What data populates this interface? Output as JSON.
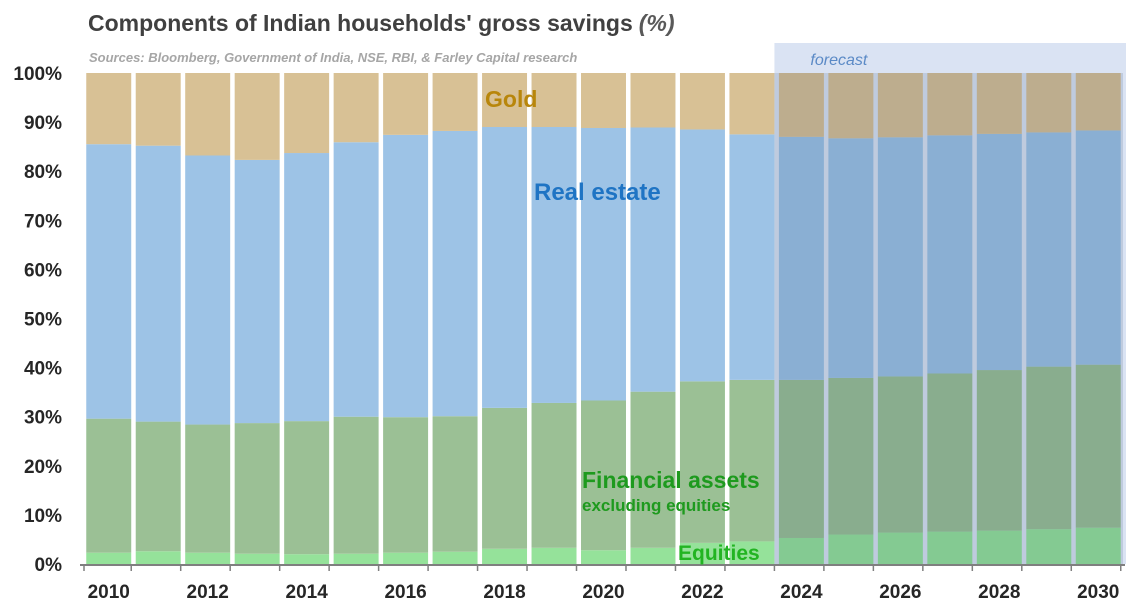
{
  "title": "Components of Indian households' gross savings",
  "title_unit": "(%)",
  "source": "Sources: Bloomberg, Government of India, NSE, RBI, & Farley Capital research",
  "forecast_label": "forecast",
  "labels": {
    "gold": "Gold",
    "real_estate": "Real estate",
    "financial": "Financial assets",
    "financial_sub": "excluding equities",
    "equities": "Equities"
  },
  "colors": {
    "gold": "#d8c195",
    "real_estate": "#9dc3e6",
    "financial": "#9bc095",
    "equities": "#95e29a",
    "forecast_band": "#dae3f3",
    "forecast_text": "#5b8ac6",
    "gold_label": "#b8860b",
    "real_estate_label": "#1f74c4",
    "financial_label": "#1e9a1e",
    "equities_label": "#22b422"
  },
  "chart_data": {
    "type": "bar",
    "stacked": true,
    "categories": [
      "2010",
      "2011",
      "2012",
      "2013",
      "2014",
      "2015",
      "2016",
      "2017",
      "2018",
      "2019",
      "2020",
      "2021",
      "2022",
      "2023",
      "2024",
      "2025",
      "2026",
      "2027",
      "2028",
      "2029",
      "2030"
    ],
    "x_tick_labels": [
      "2010",
      "2012",
      "2014",
      "2016",
      "2018",
      "2020",
      "2022",
      "2024",
      "2026",
      "2028",
      "2030"
    ],
    "forecast_start": "2024",
    "series": [
      {
        "name": "Equities",
        "key": "equities",
        "values": [
          2.3,
          2.6,
          2.3,
          2.1,
          2.0,
          2.1,
          2.3,
          2.5,
          3.1,
          3.3,
          2.8,
          3.3,
          4.3,
          4.6,
          5.3,
          6.0,
          6.4,
          6.6,
          6.8,
          7.1,
          7.4
        ]
      },
      {
        "name": "Financial assets excluding equities",
        "key": "financial",
        "values": [
          27.3,
          26.4,
          26.1,
          26.6,
          27.1,
          27.9,
          27.6,
          27.6,
          28.7,
          29.5,
          30.5,
          31.8,
          32.9,
          32.9,
          32.2,
          31.9,
          31.8,
          32.2,
          32.7,
          33.1,
          33.2
        ]
      },
      {
        "name": "Real estate",
        "key": "real_estate",
        "values": [
          55.9,
          56.2,
          54.8,
          53.6,
          54.6,
          55.9,
          57.5,
          58.1,
          57.2,
          56.2,
          55.5,
          53.8,
          51.3,
          50.0,
          49.5,
          48.8,
          48.7,
          48.5,
          48.1,
          47.7,
          47.7
        ]
      },
      {
        "name": "Gold",
        "key": "gold",
        "values": [
          14.5,
          14.8,
          16.8,
          17.7,
          16.3,
          14.1,
          12.6,
          11.8,
          11.0,
          11.0,
          11.2,
          11.1,
          11.5,
          12.5,
          13.0,
          13.3,
          13.1,
          12.7,
          12.4,
          12.1,
          11.7
        ]
      }
    ],
    "ylim": [
      0,
      100
    ],
    "y_ticks": [
      0,
      10,
      20,
      30,
      40,
      50,
      60,
      70,
      80,
      90,
      100
    ],
    "y_tick_suffix": "%",
    "grid": false,
    "legend": "inline labels"
  }
}
